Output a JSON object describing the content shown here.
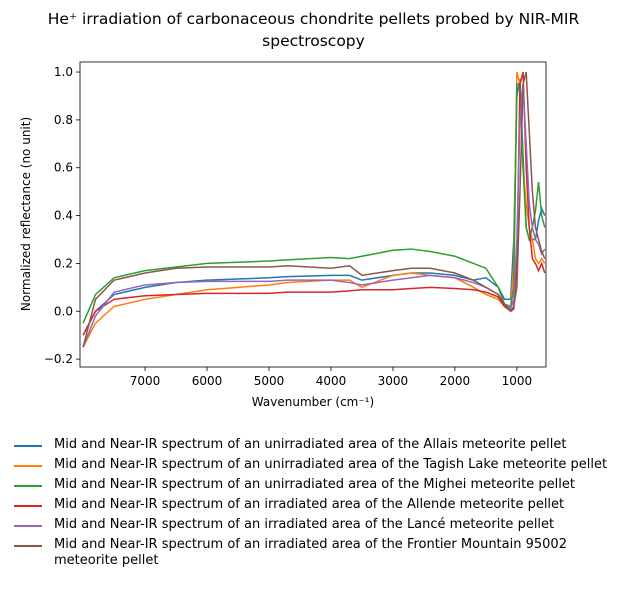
{
  "chart_data": {
    "type": "line",
    "title": "He⁺ irradiation of carbonaceous chondrite pellets probed by NIR-MIR spectroscopy",
    "x_label": "Wavenumber (cm⁻¹)",
    "y_label": "Normalized reflectance (no unit)",
    "x": [
      8000,
      7800,
      7500,
      7000,
      6500,
      6000,
      5500,
      5000,
      4700,
      4000,
      3700,
      3500,
      3000,
      2700,
      2400,
      2000,
      1700,
      1500,
      1300,
      1200,
      1100,
      1050,
      1000,
      950,
      900,
      850,
      800,
      750,
      700,
      650,
      600,
      550
    ],
    "series": [
      {
        "name": "Mid and Near-IR spectrum of an unirradiated area of the Allais meteorite pellet",
        "color": "#1f77b4",
        "values": [
          -0.1,
          0,
          0.07,
          0.1,
          0.12,
          0.13,
          0.135,
          0.14,
          0.145,
          0.15,
          0.15,
          0.13,
          0.15,
          0.16,
          0.16,
          0.15,
          0.13,
          0.14,
          0.1,
          0.05,
          0.05,
          0.3,
          0.9,
          0.97,
          0.65,
          0.35,
          0.3,
          0.3,
          0.3,
          0.38,
          0.43,
          0.4
        ]
      },
      {
        "name": "Mid and Near-IR spectrum of an unirradiated area of the Tagish Lake meteorite pellet",
        "color": "#ff7f0e",
        "values": [
          -0.15,
          -0.05,
          0.02,
          0.05,
          0.07,
          0.09,
          0.1,
          0.11,
          0.12,
          0.13,
          0.13,
          0.1,
          0.15,
          0.16,
          0.15,
          0.14,
          0.1,
          0.07,
          0.05,
          0.02,
          0.01,
          0.2,
          1.0,
          0.95,
          0.6,
          0.45,
          0.35,
          0.3,
          0.22,
          0.2,
          0.22,
          0.2
        ]
      },
      {
        "name": "Mid and Near-IR spectrum of an unirradiated area of the Mighei meteorite pellet",
        "color": "#2ca02c",
        "values": [
          -0.05,
          0.07,
          0.14,
          0.17,
          0.185,
          0.2,
          0.205,
          0.21,
          0.215,
          0.225,
          0.22,
          0.23,
          0.255,
          0.26,
          0.25,
          0.23,
          0.2,
          0.18,
          0.1,
          0.03,
          0.02,
          0.1,
          0.95,
          0.95,
          0.6,
          0.35,
          0.3,
          0.35,
          0.42,
          0.54,
          0.4,
          0.35
        ]
      },
      {
        "name": "Mid and Near-IR spectrum of an irradiated area of the Allende meteorite pellet",
        "color": "#d62728",
        "values": [
          -0.1,
          0,
          0.05,
          0.065,
          0.07,
          0.075,
          0.075,
          0.075,
          0.08,
          0.08,
          0.085,
          0.09,
          0.09,
          0.095,
          0.1,
          0.095,
          0.09,
          0.08,
          0.06,
          0.02,
          0,
          0.01,
          0.2,
          0.95,
          1.0,
          0.6,
          0.35,
          0.22,
          0.2,
          0.17,
          0.2,
          0.16
        ]
      },
      {
        "name": "Mid and Near-IR spectrum of an irradiated area of the Lancé meteorite pellet",
        "color": "#9467bd",
        "values": [
          -0.15,
          -0.02,
          0.08,
          0.11,
          0.12,
          0.125,
          0.125,
          0.125,
          0.13,
          0.13,
          0.12,
          0.11,
          0.13,
          0.14,
          0.15,
          0.14,
          0.12,
          0.1,
          0.07,
          0.03,
          0.01,
          0.05,
          0.3,
          0.8,
          0.95,
          0.7,
          0.45,
          0.35,
          0.3,
          0.28,
          0.24,
          0.26
        ]
      },
      {
        "name": "Mid and Near-IR spectrum of an irradiated area of the Frontier Mountain 95002 meteorite pellet",
        "color": "#8c564b",
        "values": [
          -0.15,
          0.05,
          0.13,
          0.16,
          0.18,
          0.185,
          0.185,
          0.185,
          0.19,
          0.18,
          0.19,
          0.15,
          0.17,
          0.18,
          0.18,
          0.16,
          0.13,
          0.1,
          0.07,
          0.03,
          0,
          0.02,
          0.1,
          0.5,
          0.95,
          1.0,
          0.75,
          0.5,
          0.35,
          0.3,
          0.25,
          0.22
        ]
      }
    ],
    "xlim": [
      8050,
      530
    ],
    "ylim": [
      -0.233,
      1.042
    ],
    "xticks": [
      7000,
      6000,
      5000,
      4000,
      3000,
      2000,
      1000
    ],
    "yticks": [
      {
        "value": -0.2,
        "label": "−0.2"
      },
      {
        "value": 0,
        "label": "0.0"
      },
      0.2,
      0.4,
      0.6,
      0.8,
      {
        "value": 1.0,
        "label": "1.0"
      }
    ],
    "grid": false,
    "legend": "below"
  }
}
